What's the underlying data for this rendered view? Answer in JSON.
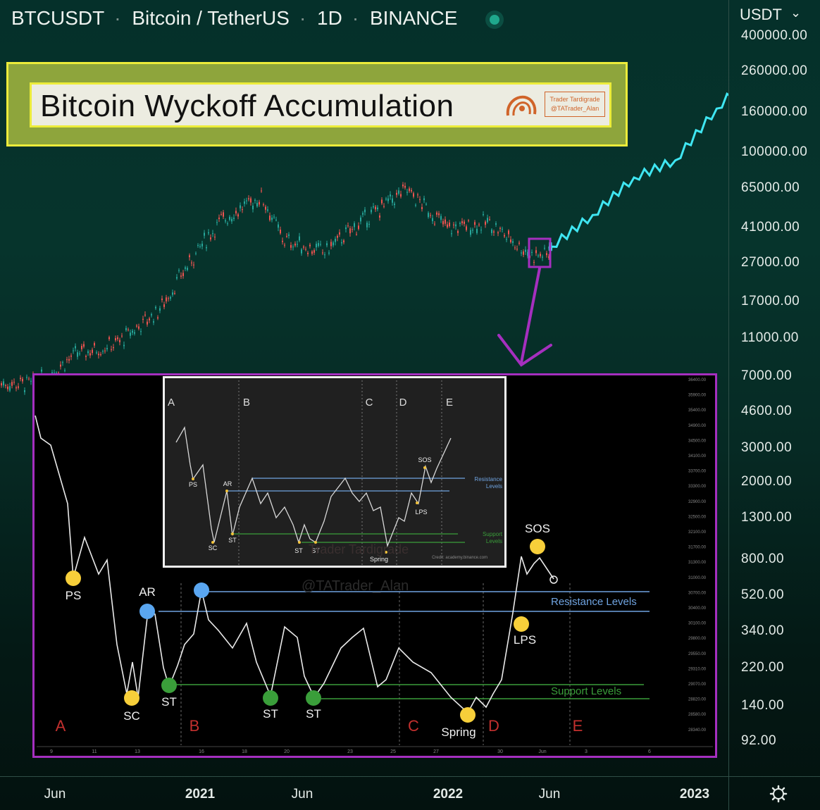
{
  "header": {
    "symbol": "BTCUSDT",
    "name": "Bitcoin / TetherUS",
    "interval": "1D",
    "exchange": "BINANCE"
  },
  "currency_label": "USDT",
  "title_card": {
    "title": "Bitcoin Wyckoff Accumulation",
    "badge_line1": "Trader Tardigrade",
    "badge_line2": "@TATrader_Alan"
  },
  "watermark": "@TATrader_Alan",
  "colors": {
    "candles_up": "#26a69a",
    "candles_down": "#ef5350",
    "projection": "#3fe6f2",
    "inset_border": "#a52fbf",
    "resistance": "#6fa3e0",
    "support": "#3a9e3a",
    "phase": "#c3302e"
  },
  "chart_data": [
    {
      "type": "line",
      "description_source": "main price axis and time axis",
      "y_axis": {
        "scale": "log",
        "ticks": [
          "400000.00",
          "260000.00",
          "160000.00",
          "100000.00",
          "65000.00",
          "41000.00",
          "27000.00",
          "17000.00",
          "11000.00",
          "7000.00",
          "4600.00",
          "3000.00",
          "2000.00",
          "1300.00",
          "800.00",
          "520.00",
          "340.00",
          "220.00",
          "140.00",
          "92.00"
        ]
      },
      "x_axis": {
        "ticks": [
          {
            "label": "Jun",
            "bold": false
          },
          {
            "label": "2021",
            "bold": true
          },
          {
            "label": "Jun",
            "bold": false
          },
          {
            "label": "2022",
            "bold": true
          },
          {
            "label": "Jun",
            "bold": false
          },
          {
            "label": "2023",
            "bold": true
          }
        ]
      },
      "series": [
        {
          "kind": "historical",
          "x": [
            "2020-05",
            "2020-07",
            "2020-09",
            "2020-11",
            "2021-01",
            "2021-02",
            "2021-04",
            "2021-05",
            "2021-07",
            "2021-09",
            "2021-11",
            "2022-01",
            "2022-03",
            "2022-05"
          ],
          "y": [
            6500,
            9200,
            10500,
            15500,
            33000,
            45000,
            60000,
            36000,
            31000,
            46000,
            65000,
            41000,
            44000,
            30000
          ]
        },
        {
          "kind": "projection",
          "x": [
            "2022-06",
            "2022-08",
            "2022-10",
            "2022-12",
            "2023-02",
            "2023-04"
          ],
          "y": [
            33000,
            48000,
            75000,
            92000,
            170000,
            280000
          ]
        }
      ]
    },
    {
      "type": "line",
      "description_source": "magnified Wyckoff schematic overlay",
      "y_axis": {
        "ticks": [
          "36400.00",
          "35900.00",
          "35400.00",
          "34900.00",
          "34500.00",
          "34100.00",
          "33700.00",
          "33300.00",
          "32900.00",
          "32500.00",
          "32100.00",
          "31700.00",
          "31300.00",
          "31000.00",
          "30700.00",
          "30400.00",
          "30100.00",
          "29800.00",
          "29550.00",
          "29310.00",
          "29070.00",
          "28820.00",
          "28580.00",
          "28340.00"
        ]
      },
      "x_axis": {
        "ticks": [
          "9",
          "11",
          "13",
          "16",
          "18",
          "20",
          "23",
          "25",
          "27",
          "30",
          "Jun",
          "3",
          "6"
        ]
      },
      "phases": [
        "A",
        "B",
        "C",
        "D",
        "E"
      ],
      "events": [
        {
          "label": "PS",
          "color": "#f7cf3a"
        },
        {
          "label": "SC",
          "color": "#f7cf3a"
        },
        {
          "label": "AR",
          "color": "#5aa6f0"
        },
        {
          "label": "ST",
          "color": "#3a9e3a"
        },
        {
          "label": "ST",
          "color": "#3a9e3a"
        },
        {
          "label": "ST",
          "color": "#3a9e3a"
        },
        {
          "label": "Spring",
          "color": "#f7cf3a"
        },
        {
          "label": "LPS",
          "color": "#f7cf3a"
        },
        {
          "label": "SOS",
          "color": "#f7cf3a"
        }
      ],
      "levels": {
        "resistance_label": "Resistance Levels",
        "support_label": "Support Levels"
      }
    },
    {
      "type": "line",
      "description_source": "reference Wyckoff schematic (inner image)",
      "phases": [
        "A",
        "B",
        "C",
        "D",
        "E"
      ],
      "events": [
        "PS",
        "AR",
        "SC",
        "ST",
        "ST",
        "ST",
        "Spring",
        "LPS",
        "SOS"
      ],
      "levels": {
        "resistance_label_1": "Resistance",
        "resistance_label_2": "Levels",
        "support_label_1": "Support",
        "support_label_2": "Levels"
      },
      "watermark": "Trader Tardigrade",
      "credit": "Credit: academy.binance.com"
    }
  ]
}
